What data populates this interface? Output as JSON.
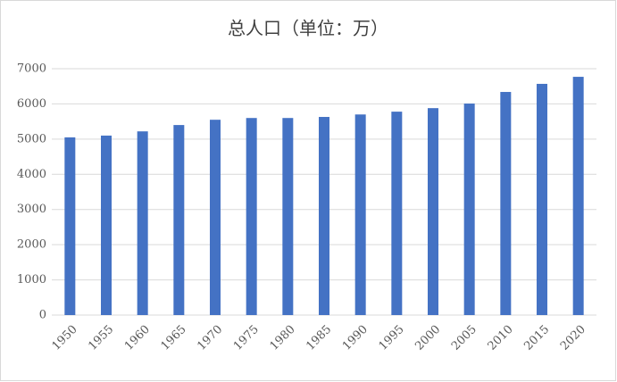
{
  "chart_data": {
    "type": "bar",
    "title": "总人口（单位：万）",
    "categories": [
      "1950",
      "1955",
      "1960",
      "1965",
      "1970",
      "1975",
      "1980",
      "1985",
      "1990",
      "1995",
      "2000",
      "2005",
      "2010",
      "2015",
      "2020"
    ],
    "values": [
      5050,
      5100,
      5220,
      5400,
      5550,
      5600,
      5600,
      5630,
      5700,
      5780,
      5880,
      6010,
      6340,
      6570,
      6770
    ],
    "color": "#4472c4",
    "ylim": [
      0,
      7000
    ],
    "yticks": [
      0,
      1000,
      2000,
      3000,
      4000,
      5000,
      6000,
      7000
    ],
    "grid": true
  }
}
